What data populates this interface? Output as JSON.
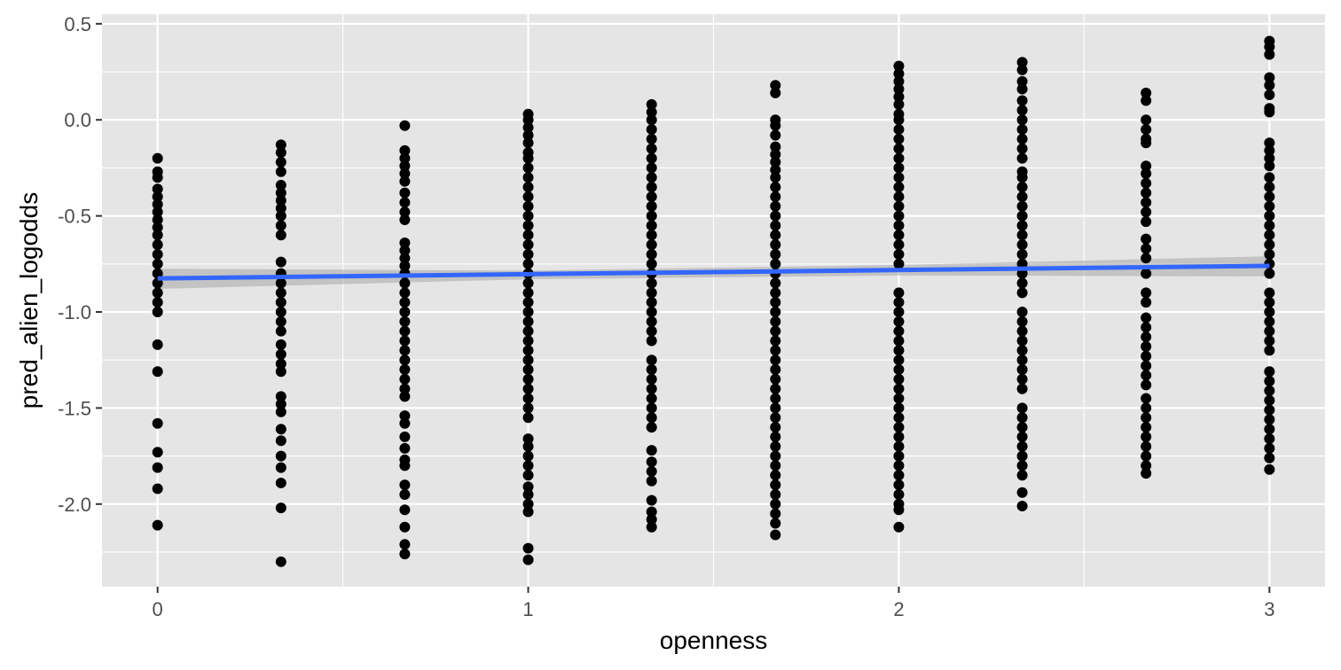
{
  "chart_data": {
    "type": "scatter",
    "title": "",
    "xlabel": "openness",
    "ylabel": "pred_alien_logodds",
    "xlim": [
      -0.15,
      3.15
    ],
    "ylim": [
      -2.43,
      0.55
    ],
    "x_ticks": [
      0,
      1,
      2,
      3
    ],
    "x_tick_labels": [
      "0",
      "1",
      "2",
      "3"
    ],
    "y_ticks": [
      -2.0,
      -1.5,
      -1.0,
      -0.5,
      0.0,
      0.5
    ],
    "y_tick_labels": [
      "-2.0",
      "-1.5",
      "-1.0",
      "-0.5",
      "0.0",
      "0.5"
    ],
    "grid": true,
    "legend": "none",
    "colors": {
      "panel_background": "#e5e5e5",
      "grid": "#ffffff",
      "points": "#000000",
      "trend_line": "#3366ff",
      "confidence_band": "#999999"
    },
    "point_groups": [
      {
        "x": 0,
        "y": [
          -0.2,
          -0.27,
          -0.3,
          -0.36,
          -0.4,
          -0.44,
          -0.48,
          -0.52,
          -0.56,
          -0.6,
          -0.65,
          -0.7,
          -0.75,
          -0.8,
          -0.85,
          -0.9,
          -0.95,
          -1.0,
          -1.17,
          -1.31,
          -1.58,
          -1.73,
          -1.81,
          -1.92,
          -2.11
        ]
      },
      {
        "x": 0.333,
        "y": [
          -0.13,
          -0.17,
          -0.22,
          -0.27,
          -0.34,
          -0.38,
          -0.42,
          -0.46,
          -0.5,
          -0.55,
          -0.6,
          -0.74,
          -0.8,
          -0.85,
          -0.9,
          -0.95,
          -1.0,
          -1.05,
          -1.1,
          -1.17,
          -1.22,
          -1.27,
          -1.31,
          -1.44,
          -1.48,
          -1.52,
          -1.61,
          -1.67,
          -1.75,
          -1.81,
          -1.89,
          -2.02,
          -2.3
        ]
      },
      {
        "x": 0.667,
        "y": [
          -0.03,
          -0.16,
          -0.2,
          -0.24,
          -0.28,
          -0.32,
          -0.38,
          -0.43,
          -0.48,
          -0.52,
          -0.64,
          -0.68,
          -0.72,
          -0.76,
          -0.8,
          -0.85,
          -0.9,
          -0.95,
          -1.0,
          -1.05,
          -1.1,
          -1.15,
          -1.2,
          -1.25,
          -1.3,
          -1.35,
          -1.4,
          -1.44,
          -1.54,
          -1.58,
          -1.65,
          -1.71,
          -1.77,
          -1.8,
          -1.9,
          -1.95,
          -2.03,
          -2.12,
          -2.21,
          -2.26
        ]
      },
      {
        "x": 1,
        "y": [
          0.03,
          0.0,
          -0.04,
          -0.08,
          -0.12,
          -0.17,
          -0.2,
          -0.25,
          -0.3,
          -0.35,
          -0.4,
          -0.45,
          -0.5,
          -0.55,
          -0.6,
          -0.65,
          -0.7,
          -0.75,
          -0.8,
          -0.85,
          -0.9,
          -0.95,
          -1.0,
          -1.05,
          -1.1,
          -1.15,
          -1.2,
          -1.25,
          -1.3,
          -1.35,
          -1.4,
          -1.45,
          -1.5,
          -1.55,
          -1.66,
          -1.7,
          -1.75,
          -1.8,
          -1.85,
          -1.91,
          -1.95,
          -2.0,
          -2.04,
          -2.23,
          -2.29
        ]
      },
      {
        "x": 1.333,
        "y": [
          0.08,
          0.04,
          0.0,
          -0.05,
          -0.1,
          -0.15,
          -0.2,
          -0.25,
          -0.3,
          -0.35,
          -0.4,
          -0.45,
          -0.5,
          -0.55,
          -0.6,
          -0.65,
          -0.7,
          -0.75,
          -0.8,
          -0.85,
          -0.9,
          -0.95,
          -1.0,
          -1.05,
          -1.1,
          -1.15,
          -1.25,
          -1.3,
          -1.35,
          -1.4,
          -1.45,
          -1.5,
          -1.55,
          -1.6,
          -1.72,
          -1.78,
          -1.83,
          -1.88,
          -1.98,
          -2.04,
          -2.08,
          -2.12
        ]
      },
      {
        "x": 1.667,
        "y": [
          0.18,
          0.14,
          0.0,
          -0.03,
          -0.08,
          -0.14,
          -0.18,
          -0.22,
          -0.26,
          -0.3,
          -0.35,
          -0.4,
          -0.45,
          -0.5,
          -0.55,
          -0.6,
          -0.65,
          -0.7,
          -0.75,
          -0.8,
          -0.85,
          -0.9,
          -0.95,
          -1.0,
          -1.05,
          -1.1,
          -1.15,
          -1.2,
          -1.25,
          -1.3,
          -1.35,
          -1.4,
          -1.45,
          -1.5,
          -1.55,
          -1.6,
          -1.65,
          -1.7,
          -1.75,
          -1.8,
          -1.85,
          -1.9,
          -1.95,
          -2.0,
          -2.05,
          -2.1,
          -2.16
        ]
      },
      {
        "x": 2,
        "y": [
          0.28,
          0.24,
          0.2,
          0.16,
          0.12,
          0.08,
          0.03,
          0.0,
          -0.05,
          -0.1,
          -0.15,
          -0.2,
          -0.25,
          -0.3,
          -0.35,
          -0.4,
          -0.45,
          -0.5,
          -0.55,
          -0.6,
          -0.65,
          -0.7,
          -0.75,
          -0.9,
          -0.95,
          -1.0,
          -1.05,
          -1.1,
          -1.15,
          -1.2,
          -1.25,
          -1.3,
          -1.35,
          -1.4,
          -1.45,
          -1.5,
          -1.55,
          -1.6,
          -1.65,
          -1.7,
          -1.75,
          -1.8,
          -1.85,
          -1.9,
          -1.95,
          -2.0,
          -2.03,
          -2.12
        ]
      },
      {
        "x": 2.333,
        "y": [
          0.3,
          0.26,
          0.2,
          0.16,
          0.1,
          0.05,
          0.0,
          -0.05,
          -0.1,
          -0.15,
          -0.2,
          -0.27,
          -0.3,
          -0.35,
          -0.4,
          -0.45,
          -0.5,
          -0.55,
          -0.6,
          -0.65,
          -0.7,
          -0.75,
          -0.8,
          -0.85,
          -0.9,
          -1.0,
          -1.05,
          -1.1,
          -1.15,
          -1.2,
          -1.25,
          -1.3,
          -1.35,
          -1.4,
          -1.5,
          -1.55,
          -1.6,
          -1.65,
          -1.7,
          -1.75,
          -1.8,
          -1.85,
          -1.94,
          -2.01
        ]
      },
      {
        "x": 2.667,
        "y": [
          0.14,
          0.1,
          0.0,
          -0.05,
          -0.1,
          -0.12,
          -0.24,
          -0.28,
          -0.33,
          -0.38,
          -0.43,
          -0.48,
          -0.53,
          -0.62,
          -0.67,
          -0.72,
          -0.8,
          -0.9,
          -0.95,
          -1.03,
          -1.08,
          -1.13,
          -1.18,
          -1.23,
          -1.28,
          -1.33,
          -1.38,
          -1.45,
          -1.5,
          -1.55,
          -1.6,
          -1.65,
          -1.7,
          -1.75,
          -1.8,
          -1.84
        ]
      },
      {
        "x": 3,
        "y": [
          0.41,
          0.38,
          0.34,
          0.22,
          0.18,
          0.13,
          0.06,
          0.04,
          -0.12,
          -0.16,
          -0.2,
          -0.24,
          -0.3,
          -0.35,
          -0.4,
          -0.45,
          -0.5,
          -0.55,
          -0.6,
          -0.65,
          -0.7,
          -0.75,
          -0.8,
          -0.9,
          -0.95,
          -1.0,
          -1.05,
          -1.1,
          -1.15,
          -1.2,
          -1.31,
          -1.36,
          -1.41,
          -1.46,
          -1.51,
          -1.56,
          -1.61,
          -1.66,
          -1.71,
          -1.76,
          -1.82
        ]
      }
    ],
    "trend_line": {
      "type": "lm",
      "x": [
        0,
        3
      ],
      "y": [
        -0.825,
        -0.76
      ]
    },
    "confidence_band": {
      "x": [
        0,
        1,
        2,
        3
      ],
      "lower": [
        -0.88,
        -0.83,
        -0.81,
        -0.815
      ],
      "upper": [
        -0.775,
        -0.785,
        -0.755,
        -0.71
      ]
    }
  }
}
